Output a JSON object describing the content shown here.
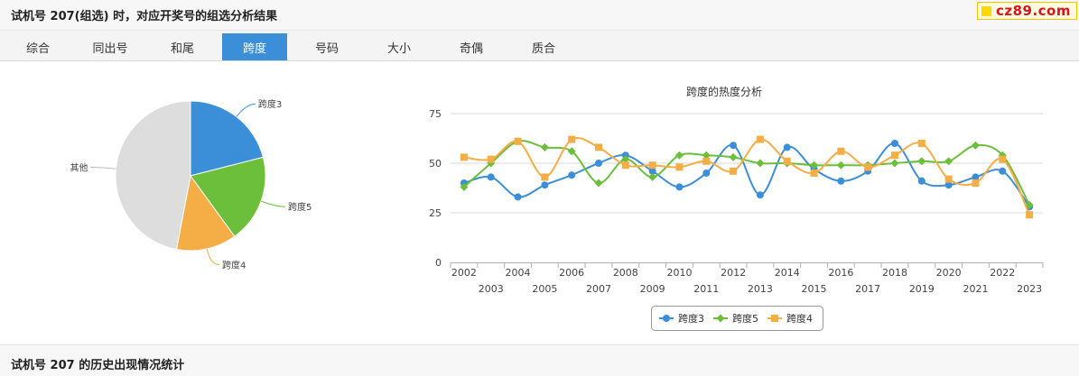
{
  "header": {
    "title": "试机号 207(组选) 时，对应开奖号的组选分析结果"
  },
  "logo": {
    "text": "cz89.com"
  },
  "tabs": [
    {
      "label": "综合"
    },
    {
      "label": "同出号"
    },
    {
      "label": "和尾"
    },
    {
      "label": "跨度",
      "active": true
    },
    {
      "label": "号码"
    },
    {
      "label": "大小"
    },
    {
      "label": "奇偶"
    },
    {
      "label": "质合"
    }
  ],
  "footer": {
    "title": "试机号 207 的历史出现情况统计"
  },
  "colors": {
    "tab_active": "#3b8fd9",
    "series_kuadu3": "#3b8fd9",
    "series_kuadu5": "#6bbf3a",
    "series_kuadu4": "#f5ad45",
    "pie_other": "#dddddd"
  },
  "chart_data": [
    {
      "type": "pie",
      "slices": [
        {
          "name": "跨度3",
          "value": 21,
          "color": "#3b8fd9"
        },
        {
          "name": "跨度5",
          "value": 19,
          "color": "#6bbf3a"
        },
        {
          "name": "跨度4",
          "value": 13,
          "color": "#f5ad45"
        },
        {
          "name": "其他",
          "value": 47,
          "color": "#dddddd"
        }
      ]
    },
    {
      "type": "line",
      "title": "跨度的热度分析",
      "x": [
        "2002",
        "2003",
        "2004",
        "2005",
        "2006",
        "2007",
        "2008",
        "2009",
        "2010",
        "2011",
        "2012",
        "2013",
        "2014",
        "2015",
        "2016",
        "2017",
        "2018",
        "2019",
        "2020",
        "2021",
        "2022",
        "2023"
      ],
      "ylim": [
        0,
        75
      ],
      "yticks": [
        0,
        25,
        50,
        75
      ],
      "grid": true,
      "legend": "bottom",
      "series": [
        {
          "name": "跨度3",
          "color": "#3b8fd9",
          "marker": "circle",
          "values": [
            40,
            43,
            33,
            39,
            44,
            50,
            54,
            46,
            38,
            45,
            59,
            34,
            58,
            47,
            41,
            46,
            60,
            41,
            39,
            43,
            46,
            28
          ]
        },
        {
          "name": "跨度5",
          "color": "#6bbf3a",
          "marker": "diamond",
          "values": [
            38,
            50,
            61,
            58,
            56,
            40,
            52,
            43,
            54,
            54,
            53,
            50,
            50,
            49,
            49,
            49,
            50,
            51,
            51,
            59,
            54,
            29
          ]
        },
        {
          "name": "跨度4",
          "color": "#f5ad45",
          "marker": "square",
          "values": [
            53,
            52,
            61,
            43,
            62,
            58,
            49,
            49,
            48,
            51,
            46,
            62,
            51,
            45,
            56,
            48,
            54,
            60,
            42,
            40,
            52,
            24
          ]
        }
      ]
    }
  ]
}
